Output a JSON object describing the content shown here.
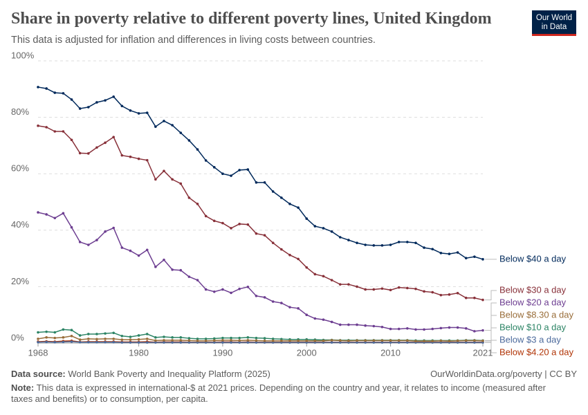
{
  "chart_data": {
    "type": "line",
    "title": "Share in poverty relative to different poverty lines, United Kingdom",
    "subtitle": "This data is adjusted for inflation and differences in living costs between countries.",
    "logo": [
      "Our World",
      "in Data"
    ],
    "source_label": "Data source:",
    "source": "World Bank Poverty and Inequality Platform (2025)",
    "link": "OurWorldinData.org/poverty | CC BY",
    "note_label": "Note:",
    "note": "This data is expressed in international-$ at 2021 prices. Depending on the country and year, it relates to income (measured after taxes and benefits) or to consumption, per capita.",
    "x": [
      1968,
      1969,
      1970,
      1971,
      1972,
      1973,
      1974,
      1975,
      1976,
      1977,
      1978,
      1979,
      1980,
      1981,
      1982,
      1983,
      1984,
      1985,
      1986,
      1987,
      1988,
      1989,
      1990,
      1991,
      1992,
      1993,
      1994,
      1995,
      1996,
      1997,
      1998,
      1999,
      2000,
      2001,
      2002,
      2003,
      2004,
      2005,
      2006,
      2007,
      2008,
      2009,
      2010,
      2011,
      2012,
      2013,
      2014,
      2015,
      2016,
      2017,
      2018,
      2019,
      2020,
      2021
    ],
    "xlim": [
      1968,
      2021
    ],
    "xticks": [
      1968,
      1980,
      1990,
      2000,
      2010,
      2021
    ],
    "ylim": [
      0,
      100
    ],
    "yticks": [
      {
        "value": 0,
        "label": "0%"
      },
      {
        "value": 20,
        "label": "20%"
      },
      {
        "value": 40,
        "label": "40%"
      },
      {
        "value": 60,
        "label": "60%"
      },
      {
        "value": 80,
        "label": "80%"
      },
      {
        "value": 100,
        "label": "100%"
      }
    ],
    "grid": true,
    "series": [
      {
        "name": "Below $40 a day",
        "color": "#00295b",
        "values": [
          90.7,
          90.2,
          88.7,
          88.5,
          86.3,
          83.1,
          83.6,
          85.3,
          86,
          87.3,
          84,
          82.4,
          81.4,
          81.6,
          76.7,
          78.7,
          77.2,
          74.5,
          71.8,
          68.6,
          64.7,
          62.3,
          60,
          59.3,
          61.3,
          61.5,
          56.9,
          56.9,
          53.7,
          51.5,
          49.3,
          48,
          44.1,
          41.4,
          40.7,
          39.5,
          37.5,
          36.5,
          35.5,
          34.8,
          34.6,
          34.6,
          34.8,
          35.8,
          35.8,
          35.5,
          33.8,
          33.3,
          31.9,
          31.6,
          32.1,
          30.1,
          30.6,
          29.7
        ]
      },
      {
        "name": "Below $30 a day",
        "color": "#883039",
        "values": [
          77,
          76.5,
          75,
          75,
          72,
          67.3,
          67.2,
          69.3,
          71,
          73,
          66.5,
          66,
          65.3,
          64.8,
          58,
          61,
          58,
          56.5,
          51.5,
          49.3,
          45,
          43.3,
          42.5,
          40.7,
          42.2,
          42,
          38.8,
          38.2,
          35.5,
          33.2,
          31.2,
          29.8,
          26.8,
          24.4,
          23.7,
          22.3,
          20.8,
          20.8,
          20,
          19,
          19,
          19.3,
          18.8,
          19.7,
          19.5,
          19.2,
          18.3,
          18,
          17,
          17.2,
          17.7,
          16,
          16,
          15.3
        ]
      },
      {
        "name": "Below $20 a day",
        "color": "#6d3e91",
        "values": [
          46.3,
          45.6,
          44.3,
          46,
          41,
          35.8,
          34.8,
          36.5,
          39.5,
          40.8,
          33.8,
          32.7,
          31,
          33,
          27,
          29.5,
          26,
          25.8,
          23.5,
          22.3,
          19,
          18.2,
          19,
          17.8,
          19.2,
          19.9,
          16.7,
          16.2,
          14.7,
          14.2,
          12.7,
          12.3,
          10,
          8.7,
          8.3,
          7.5,
          6.5,
          6.5,
          6.5,
          6.2,
          6,
          5.7,
          5,
          5,
          5.2,
          4.8,
          4.8,
          5,
          5.3,
          5.5,
          5.5,
          5.2,
          4.2,
          4.5
        ]
      },
      {
        "name": "Below $8.30 a day",
        "color": "#996d39",
        "values": [
          1.5,
          2,
          1.8,
          2,
          2.5,
          1.2,
          1.5,
          1.4,
          1.5,
          1.5,
          1.2,
          1.2,
          1.3,
          1.5,
          0.9,
          1,
          1,
          1,
          0.9,
          0.8,
          0.8,
          0.9,
          1,
          1,
          0.9,
          1,
          0.9,
          0.8,
          0.8,
          0.8,
          0.8,
          0.8,
          0.8,
          0.8,
          0.8,
          1,
          0.9,
          0.8,
          0.9,
          0.9,
          0.9,
          0.9,
          0.9,
          0.9,
          0.9,
          0.7,
          0.7,
          0.7,
          0.8,
          0.7,
          0.8,
          0.9,
          0.9,
          0.8
        ]
      },
      {
        "name": "Below $10 a day",
        "color": "#2c8465",
        "values": [
          3.8,
          4,
          3.8,
          4.8,
          4.6,
          2.7,
          3.2,
          3.2,
          3.4,
          3.6,
          2.5,
          2.2,
          2.7,
          3.2,
          2,
          2.2,
          2,
          2,
          1.7,
          1.5,
          1.5,
          1.6,
          1.8,
          1.8,
          1.8,
          2,
          1.8,
          1.7,
          1.5,
          1.4,
          1.3,
          1.3,
          1.3,
          1.2,
          1.1,
          1.1,
          1,
          1,
          1,
          1,
          1,
          1,
          1,
          1,
          1,
          0.9,
          0.9,
          0.9,
          0.9,
          0.9,
          0.9,
          1,
          1,
          0.9
        ]
      },
      {
        "name": "Below $3 a day",
        "color": "#4c6a9c",
        "values": [
          0.3,
          0.4,
          0.3,
          0.4,
          0.5,
          0.3,
          0.3,
          0.3,
          0.3,
          0.3,
          0.2,
          0.2,
          0.2,
          0.2,
          0.2,
          0.2,
          0.2,
          0.2,
          0.2,
          0.2,
          0.2,
          0.2,
          0.2,
          0.2,
          0.2,
          0.2,
          0.2,
          0.2,
          0.2,
          0.2,
          0.2,
          0.2,
          0.2,
          0.2,
          0.2,
          0.2,
          0.2,
          0.2,
          0.2,
          0.2,
          0.2,
          0.2,
          0.2,
          0.2,
          0.2,
          0.2,
          0.2,
          0.2,
          0.2,
          0.2,
          0.2,
          0.2,
          0.2,
          0.2
        ]
      },
      {
        "name": "Below $4.20 a day",
        "color": "#b13507",
        "values": [
          0.5,
          0.6,
          0.5,
          0.7,
          0.8,
          0.4,
          0.5,
          0.5,
          0.5,
          0.5,
          0.4,
          0.4,
          0.4,
          0.5,
          0.3,
          0.4,
          0.4,
          0.4,
          0.3,
          0.3,
          0.3,
          0.3,
          0.4,
          0.4,
          0.3,
          0.4,
          0.3,
          0.3,
          0.3,
          0.3,
          0.3,
          0.3,
          0.3,
          0.3,
          0.3,
          0.3,
          0.3,
          0.3,
          0.3,
          0.3,
          0.3,
          0.3,
          0.3,
          0.3,
          0.3,
          0.3,
          0.3,
          0.3,
          0.3,
          0.3,
          0.3,
          0.3,
          0.3,
          0.3
        ]
      }
    ]
  }
}
